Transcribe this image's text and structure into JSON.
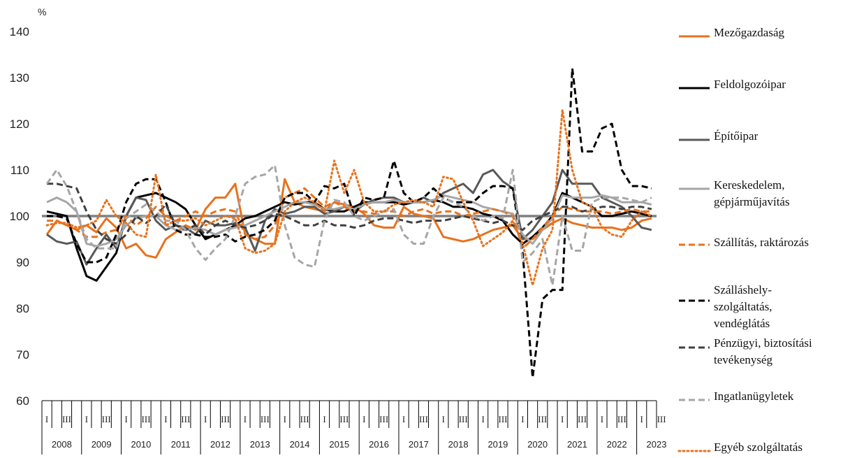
{
  "chart_data": {
    "type": "line",
    "y_unit": "%",
    "ylim": [
      60,
      140
    ],
    "yticks": [
      60,
      70,
      80,
      90,
      100,
      110,
      120,
      130,
      140
    ],
    "reference_line": 100,
    "years": [
      "2008",
      "2009",
      "2010",
      "2011",
      "2012",
      "2013",
      "2014",
      "2015",
      "2016",
      "2017",
      "2018",
      "2019",
      "2020",
      "2021",
      "2022",
      "2023"
    ],
    "quarter_labels": [
      "I",
      "III"
    ],
    "series": [
      {
        "name": "Mezőgazdaság",
        "color": "#e8721c",
        "dash": "solid",
        "values": [
          96,
          99,
          98,
          97,
          98,
          96.5,
          99.5,
          97.5,
          93,
          94,
          91.5,
          91,
          95,
          96.5,
          98,
          97,
          101.5,
          104,
          104,
          107,
          96,
          95,
          94,
          94,
          108,
          103,
          102,
          101.5,
          101,
          103,
          102.5,
          102,
          100.5,
          98,
          97.5,
          97.5,
          102,
          100.5,
          100,
          99.5,
          95.5,
          95,
          94.5,
          95,
          96,
          97,
          97.5,
          98,
          95,
          95,
          97,
          98.5,
          99.5,
          98.5,
          98,
          97.5,
          97.5,
          97.5,
          97,
          97.5,
          99,
          99.5
        ]
      },
      {
        "name": "Feldolgozóipar",
        "color": "#000000",
        "dash": "solid",
        "values": [
          101,
          100.5,
          100,
          93,
          87,
          86,
          89,
          92,
          100,
          104,
          104.5,
          105,
          104,
          103,
          101.5,
          98,
          95,
          96,
          97,
          98,
          99.5,
          100,
          101,
          102,
          103,
          102.5,
          103,
          103,
          101.5,
          101,
          101,
          102,
          103,
          103,
          103,
          103,
          102.5,
          103,
          103,
          103.5,
          103,
          102,
          102,
          101.5,
          100.5,
          100,
          99,
          96,
          94,
          95.5,
          97.5,
          100,
          105,
          104,
          103,
          102,
          100,
          100,
          100.5,
          101,
          100.5,
          100
        ]
      },
      {
        "name": "Építőipar",
        "color": "#595959",
        "dash": "solid",
        "values": [
          96,
          94.5,
          94,
          94.5,
          89.5,
          93,
          96,
          93,
          100,
          104,
          103.5,
          99,
          97,
          98,
          97.5,
          96,
          99,
          98,
          98,
          98.5,
          97.5,
          92.5,
          99,
          101.5,
          100.5,
          101,
          102,
          102,
          100.5,
          101,
          102,
          101,
          102.5,
          103.5,
          104,
          104,
          103,
          103,
          104,
          103,
          105,
          106,
          107,
          105,
          109,
          110,
          107.5,
          106,
          95,
          97,
          100,
          103,
          110,
          107,
          107,
          107,
          104,
          103,
          102,
          100,
          97.5,
          97
        ]
      },
      {
        "name": "Kereskedelem, gépjárműjavítás",
        "color": "#a6a6a6",
        "dash": "solid",
        "values": [
          103,
          104,
          103,
          101,
          94,
          93.5,
          94,
          95,
          98,
          99.5,
          100,
          100,
          98,
          97,
          97,
          97.5,
          97,
          96,
          97,
          97.5,
          98,
          99,
          100,
          101,
          102,
          103,
          103,
          102.5,
          101.5,
          101.5,
          102,
          101.5,
          102.5,
          103,
          103,
          103.5,
          103,
          103,
          103,
          103.5,
          104.5,
          104,
          103.5,
          103,
          102,
          101.5,
          101,
          100.5,
          96,
          94,
          97,
          99.5,
          104.5,
          104,
          104,
          104,
          104.5,
          104,
          103,
          103,
          103,
          102.5
        ]
      },
      {
        "name": "Szállítás, raktározás",
        "color": "#e8721c",
        "dash": "dash",
        "values": [
          99,
          99,
          98,
          97,
          95.5,
          95.5,
          96.5,
          97,
          100,
          98,
          99.5,
          102,
          100,
          99,
          100,
          101,
          100,
          101,
          101.5,
          101,
          96,
          95,
          95.5,
          98,
          104,
          105,
          106,
          104,
          102,
          103,
          102,
          101,
          101,
          100.5,
          101,
          101,
          100,
          101,
          101.5,
          100.5,
          101,
          101,
          100,
          100.5,
          101,
          101.5,
          101,
          100,
          93,
          95,
          97.5,
          100,
          102,
          101.5,
          101,
          101,
          101,
          100.5,
          101,
          101.5,
          101,
          101
        ]
      },
      {
        "name": "Szálláshely-szolgáltatás, vendéglátás",
        "color": "#000000",
        "dash": "dash",
        "values": [
          100,
          100,
          99.5,
          94,
          90,
          90,
          91,
          96,
          103,
          107,
          108,
          108,
          103,
          97,
          96,
          96,
          95.5,
          95.5,
          96,
          94.5,
          95.5,
          96,
          97,
          99,
          104,
          105,
          105,
          103,
          106.5,
          106,
          107,
          100,
          104,
          103.5,
          104,
          112,
          105,
          103,
          104,
          106,
          104,
          103,
          103,
          103,
          105,
          106.5,
          106.5,
          106,
          92,
          65,
          82,
          84,
          84,
          132,
          114,
          114,
          119,
          120,
          110,
          106.5,
          106.5,
          106
        ]
      },
      {
        "name": "Pénzügyi, biztosítási tevékenység",
        "color": "#404040",
        "dash": "dash",
        "values": [
          107,
          107,
          106.5,
          106,
          101,
          97,
          95,
          94,
          96,
          100,
          98.5,
          100,
          102.5,
          98,
          97,
          98,
          96,
          98,
          99,
          98,
          97.5,
          98,
          99,
          100.5,
          100,
          99,
          98,
          98,
          99,
          98,
          98,
          97.5,
          98,
          99,
          99.5,
          99.5,
          99,
          98.5,
          99,
          99,
          99,
          99.5,
          100,
          99.5,
          99,
          98.5,
          99,
          98,
          97,
          99,
          100,
          101,
          102,
          102,
          101,
          101.5,
          102,
          102,
          101.5,
          102,
          102,
          101.5
        ]
      },
      {
        "name": "Ingatlanügyletek",
        "color": "#a6a6a6",
        "dash": "dash",
        "values": [
          107,
          110,
          106.5,
          101,
          95,
          93,
          93,
          93,
          99.5,
          101,
          102.5,
          101,
          99,
          99,
          97,
          93,
          90.5,
          93,
          95,
          100,
          107,
          108.5,
          109,
          111,
          98,
          91,
          89.5,
          89,
          99,
          103.5,
          103,
          100,
          99,
          100,
          101,
          101.5,
          96,
          94,
          94,
          100,
          104,
          103,
          102,
          100,
          99,
          100,
          99.5,
          110,
          90,
          92,
          95,
          85,
          100,
          92.5,
          92.5,
          103,
          104,
          104,
          104,
          103.5,
          103,
          104
        ]
      },
      {
        "name": "Egyéb szolgáltatás",
        "color": "#e8721c",
        "dash": "dot",
        "values": [
          98,
          98.5,
          98.5,
          97.5,
          98,
          99,
          103.5,
          100,
          98.5,
          96,
          95.5,
          109,
          98,
          99,
          99,
          99.5,
          98,
          99,
          100,
          99.5,
          93,
          92,
          92.5,
          94,
          101,
          103,
          104,
          103,
          101,
          112,
          105,
          110,
          103,
          101,
          101,
          102.5,
          103,
          103.5,
          103,
          102,
          108.5,
          108,
          103,
          99,
          93.5,
          95,
          96.5,
          99,
          94,
          85,
          93,
          97,
          123,
          110,
          103,
          102,
          97.5,
          96,
          95.5,
          99,
          101,
          100
        ]
      }
    ]
  }
}
